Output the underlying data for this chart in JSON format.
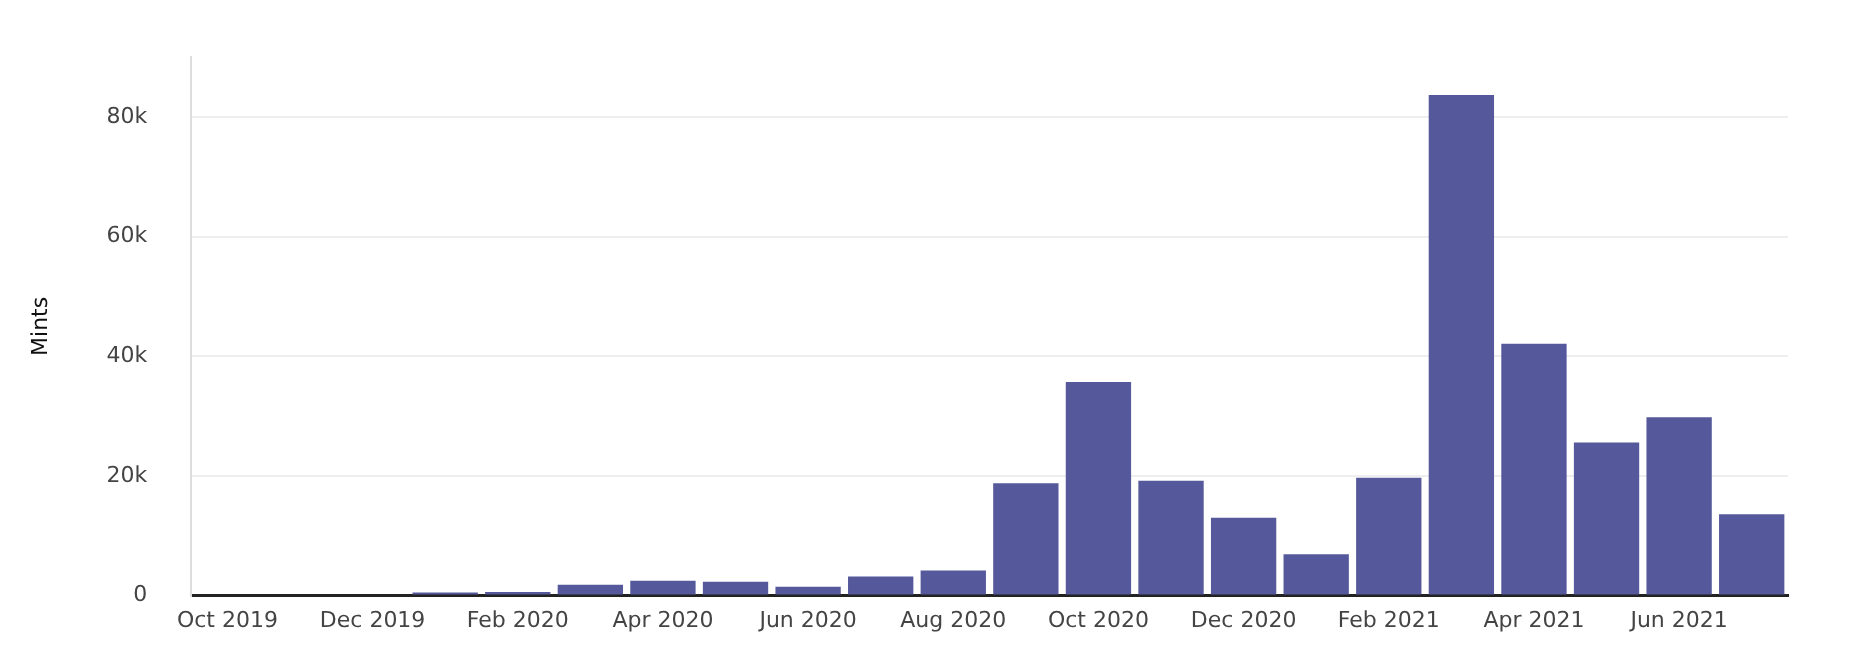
{
  "chart_data": {
    "type": "bar",
    "ylabel": "Mints",
    "categories": [
      "Oct 2019",
      null,
      "Dec 2019",
      null,
      "Feb 2020",
      null,
      "Apr 2020",
      null,
      "Jun 2020",
      null,
      "Aug 2020",
      null,
      "Oct 2020",
      null,
      "Dec 2020",
      null,
      "Feb 2021",
      null,
      "Apr 2021",
      null,
      "Jun 2021",
      null
    ],
    "values": [
      0,
      0,
      0,
      500,
      600,
      1800,
      2500,
      2300,
      1500,
      3200,
      4200,
      18800,
      35700,
      19200,
      13000,
      6900,
      19700,
      83700,
      42100,
      25600,
      29800,
      13600
    ],
    "color": "#55589a",
    "ylim": [
      0,
      90000
    ],
    "yticks": [
      0,
      {
        "value": 20000,
        "label": "20k"
      },
      {
        "value": 40000,
        "label": "40k"
      },
      {
        "value": 60000,
        "label": "60k"
      },
      {
        "value": 80000,
        "label": "80k"
      }
    ],
    "grid": "y",
    "legend": false
  }
}
